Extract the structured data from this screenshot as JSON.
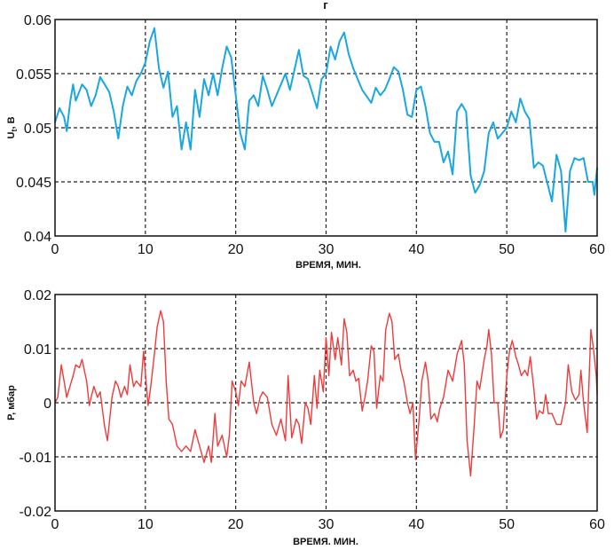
{
  "chart_data": [
    {
      "type": "line",
      "title": "г",
      "xlabel": "ВРЕМЯ, МИН.",
      "ylabel": {
        "main": "U",
        "sub": "t",
        "unit": ", В"
      },
      "xlim": [
        0,
        60
      ],
      "ylim": [
        0.04,
        0.06
      ],
      "xticks": [
        "0",
        "10",
        "20",
        "30",
        "40",
        "50",
        "60"
      ],
      "yticks": [
        "0.04",
        "0.045",
        "0.05",
        "0.055",
        "0.06"
      ],
      "grid": true,
      "color": "#1aa7e0",
      "x": [
        0,
        0.5,
        1,
        1.3,
        1.7,
        2,
        2.3,
        3,
        3.5,
        4,
        4.5,
        5,
        5.5,
        6,
        6.5,
        7,
        7.5,
        8,
        8.5,
        9,
        9.5,
        10,
        10.5,
        11,
        11.5,
        12,
        12.5,
        13,
        13.5,
        14,
        14.5,
        15,
        15.5,
        16,
        16.5,
        17,
        17.5,
        18,
        18.5,
        19,
        19.5,
        20,
        20.5,
        21,
        21.5,
        22,
        22.5,
        23,
        23.5,
        24,
        25,
        25.5,
        26,
        27,
        27.5,
        28,
        29,
        29.5,
        30,
        30.5,
        31,
        31.5,
        32,
        32.5,
        33,
        33.5,
        34,
        35,
        35.5,
        36,
        36.5,
        37,
        37.5,
        38,
        38.5,
        39,
        39.5,
        40,
        40.5,
        41,
        41.5,
        42,
        42.5,
        43,
        43.5,
        44,
        44.5,
        45,
        45.5,
        46,
        46.5,
        47,
        47.5,
        48,
        48.5,
        49,
        50,
        50.5,
        51,
        51.5,
        52,
        52.5,
        53,
        53.5,
        54,
        55,
        55.5,
        56,
        56.5,
        57,
        57.5,
        58,
        58.5,
        59,
        59.5,
        59.7,
        60
      ],
      "y": [
        0.0505,
        0.0518,
        0.051,
        0.0497,
        0.0525,
        0.054,
        0.0525,
        0.054,
        0.0535,
        0.052,
        0.053,
        0.0547,
        0.054,
        0.0533,
        0.0515,
        0.049,
        0.052,
        0.0538,
        0.053,
        0.0543,
        0.055,
        0.056,
        0.058,
        0.0592,
        0.0555,
        0.0537,
        0.0552,
        0.051,
        0.052,
        0.048,
        0.0505,
        0.048,
        0.0535,
        0.051,
        0.0545,
        0.053,
        0.055,
        0.053,
        0.0555,
        0.0575,
        0.0565,
        0.053,
        0.0495,
        0.048,
        0.0525,
        0.053,
        0.052,
        0.0548,
        0.0535,
        0.052,
        0.054,
        0.055,
        0.0535,
        0.0572,
        0.0548,
        0.0545,
        0.0518,
        0.0545,
        0.055,
        0.0575,
        0.0563,
        0.058,
        0.0588,
        0.0568,
        0.0555,
        0.0545,
        0.0535,
        0.0523,
        0.0537,
        0.053,
        0.0535,
        0.0545,
        0.0556,
        0.0552,
        0.0535,
        0.0512,
        0.051,
        0.0535,
        0.0538,
        0.052,
        0.0495,
        0.0487,
        0.0487,
        0.0468,
        0.0478,
        0.0457,
        0.0515,
        0.0522,
        0.0515,
        0.0456,
        0.044,
        0.0447,
        0.046,
        0.0495,
        0.0505,
        0.049,
        0.05,
        0.0515,
        0.0505,
        0.0527,
        0.0515,
        0.0508,
        0.0463,
        0.0468,
        0.0465,
        0.0432,
        0.0475,
        0.046,
        0.0404,
        0.046,
        0.0472,
        0.047,
        0.0472,
        0.045,
        0.045,
        0.0438,
        0.0463
      ]
    },
    {
      "type": "line",
      "title": "",
      "xlabel": "ВРЕМЯ. МИН.",
      "ylabel": {
        "main": "P, мбар",
        "sub": "",
        "unit": ""
      },
      "xlim": [
        0,
        60
      ],
      "ylim": [
        -0.02,
        0.02
      ],
      "xticks": [
        "0",
        "10",
        "20",
        "30",
        "40",
        "50",
        "60"
      ],
      "yticks": [
        "-0.02",
        "-0.01",
        "0",
        "0.01",
        "0.02"
      ],
      "grid": true,
      "color": "#f03a3a",
      "x": [
        0,
        0.3,
        0.7,
        1,
        1.3,
        2,
        2.3,
        2.7,
        3,
        3.5,
        3.8,
        4,
        4.3,
        4.7,
        5,
        5.5,
        5.8,
        6.3,
        6.7,
        7,
        7.3,
        7.7,
        8,
        8.3,
        8.7,
        9,
        9.5,
        9.8,
        10.3,
        10.6,
        11,
        11.3,
        11.7,
        12,
        12.3,
        12.6,
        13,
        13.5,
        14,
        14.5,
        15,
        15.5,
        16,
        16.5,
        17,
        17.3,
        17.7,
        18,
        18.5,
        19,
        19.3,
        19.6,
        20,
        20.3,
        20.6,
        21,
        21.5,
        22,
        22.3,
        22.7,
        23,
        23.5,
        24,
        24.5,
        25,
        25.5,
        25.8,
        26.2,
        26.7,
        27,
        27.3,
        27.7,
        28,
        28.3,
        28.7,
        29,
        29.3,
        29.7,
        30,
        30.3,
        30.6,
        31,
        31.3,
        31.7,
        32,
        32.3,
        32.6,
        33,
        33.3,
        33.6,
        34,
        34.3,
        34.6,
        35,
        35.3,
        35.6,
        36,
        36.3,
        36.6,
        37,
        37.3,
        37.6,
        38,
        38.3,
        38.6,
        39,
        39.3,
        39.6,
        39.9,
        40.3,
        40.6,
        41,
        41.3,
        41.6,
        42,
        42.3,
        42.6,
        43,
        43.5,
        44,
        44.5,
        45,
        45.3,
        45.6,
        46,
        46.4,
        46.7,
        47,
        47.5,
        47.8,
        48,
        48.3,
        48.6,
        49,
        49.3,
        49.6,
        50,
        50.3,
        50.6,
        51,
        51.3,
        51.6,
        52,
        52.3,
        52.6,
        53,
        53.3,
        53.6,
        54,
        54.3,
        54.6,
        55,
        55.5,
        56,
        56.5,
        56.8,
        57.2,
        57.6,
        58,
        58.2,
        58.5,
        58.9,
        59.3,
        59.6,
        59.9,
        60
      ],
      "y": [
        0,
        0.001,
        0.007,
        0.004,
        0.001,
        0.005,
        0.007,
        0.0065,
        0.008,
        0.004,
        -0.0005,
        0.001,
        0.003,
        0.001,
        0.002,
        -0.0045,
        -0.007,
        0.001,
        0.004,
        0.003,
        0.001,
        0.003,
        0.0015,
        0.007,
        0.003,
        0.004,
        0.003,
        0.0095,
        -0.0005,
        0.003,
        0.009,
        0.014,
        0.017,
        0.015,
        0.004,
        -0.003,
        -0.004,
        -0.008,
        -0.009,
        -0.008,
        -0.009,
        -0.005,
        -0.008,
        -0.011,
        -0.008,
        -0.011,
        -0.002,
        -0.008,
        -0.006,
        -0.01,
        -0.006,
        0.004,
        0.002,
        -0.0005,
        0.004,
        0.003,
        0.0075,
        0,
        -0.002,
        0.001,
        0.002,
        0.001,
        -0.004,
        -0.006,
        -0.003,
        -0.007,
        0.005,
        -0.0065,
        -0.003,
        -0.004,
        -0.0075,
        0,
        -0.001,
        -0.004,
        0.005,
        -0.001,
        0.006,
        0.002,
        0.012,
        0.005,
        0.013,
        0.008,
        0.012,
        0.007,
        0.0155,
        0.013,
        0.005,
        0.006,
        0.004,
        0.0045,
        -0.0015,
        0.001,
        0.004,
        0.0105,
        0.0095,
        -0.001,
        0.005,
        0.004,
        0.0135,
        0.0165,
        0.015,
        0.008,
        0.009,
        0.006,
        0.004,
        0,
        -0.002,
        0,
        -0.0105,
        -0.003,
        0.004,
        0.0075,
        0.004,
        -0.003,
        -0.002,
        -0.0035,
        -0.001,
        0.001,
        0.006,
        0.004,
        0.009,
        0.0115,
        0.007,
        -0.007,
        -0.0135,
        -0.004,
        0.004,
        0.0025,
        0.008,
        0.0105,
        0.0135,
        0.009,
        0,
        0,
        -0.0065,
        -0.005,
        0.005,
        0.0095,
        0.0115,
        0.0085,
        0.007,
        0.005,
        0.006,
        0.005,
        0.0085,
        0.0025,
        -0.003,
        -0.0015,
        -0.002,
        0.0015,
        -0.002,
        -0.002,
        -0.004,
        -0.004,
        0,
        0.007,
        0.002,
        0.0005,
        0.0015,
        0.006,
        0,
        -0.0055,
        0.0135,
        0.01,
        0.005,
        0.0015
      ]
    }
  ]
}
